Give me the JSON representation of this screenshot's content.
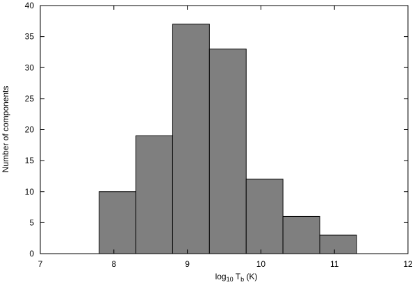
{
  "chart_data": {
    "type": "bar",
    "histogram": true,
    "bins": [
      {
        "x0": 7.8,
        "x1": 8.3,
        "count": 10
      },
      {
        "x0": 8.3,
        "x1": 8.8,
        "count": 19
      },
      {
        "x0": 8.8,
        "x1": 9.3,
        "count": 37
      },
      {
        "x0": 9.3,
        "x1": 9.8,
        "count": 33
      },
      {
        "x0": 9.8,
        "x1": 10.3,
        "count": 12
      },
      {
        "x0": 10.3,
        "x1": 10.8,
        "count": 6
      },
      {
        "x0": 10.8,
        "x1": 11.3,
        "count": 3
      }
    ],
    "xlim": [
      7,
      12
    ],
    "ylim": [
      0,
      40
    ],
    "xticks": [
      "7",
      "8",
      "9",
      "10",
      "11",
      "12"
    ],
    "yticks": [
      "0",
      "5",
      "10",
      "15",
      "20",
      "25",
      "30",
      "35",
      "40"
    ],
    "xlabel": {
      "prefix": "log",
      "sub1": "10",
      "middle": " T",
      "sub2": "b",
      "suffix": " (K)"
    },
    "ylabel": "Number of components",
    "grid": false,
    "colors": {
      "bar_fill": "#7f7f7f",
      "bar_stroke": "#000000",
      "axis": "#000000"
    }
  }
}
